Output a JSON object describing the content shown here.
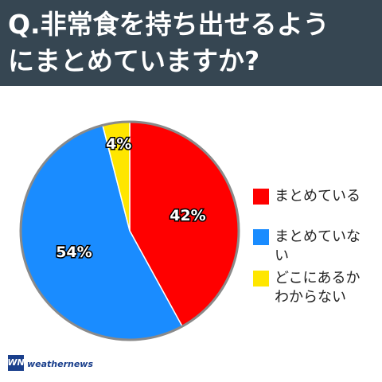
{
  "chart_data": {
    "type": "pie",
    "title": [
      "Q.非常食を持ち出せるよう",
      "にまとめていますか?"
    ],
    "categories": [
      "まとめている",
      "まとめていない",
      "どこにあるかわからない"
    ],
    "values": [
      42,
      54,
      4
    ],
    "value_labels": [
      "42%",
      "54%",
      "4%"
    ],
    "colors": [
      "#ff0000",
      "#1a8cff",
      "#ffe600"
    ],
    "legend": "right"
  },
  "logo": {
    "mark": "WN",
    "text": "weathernews"
  }
}
